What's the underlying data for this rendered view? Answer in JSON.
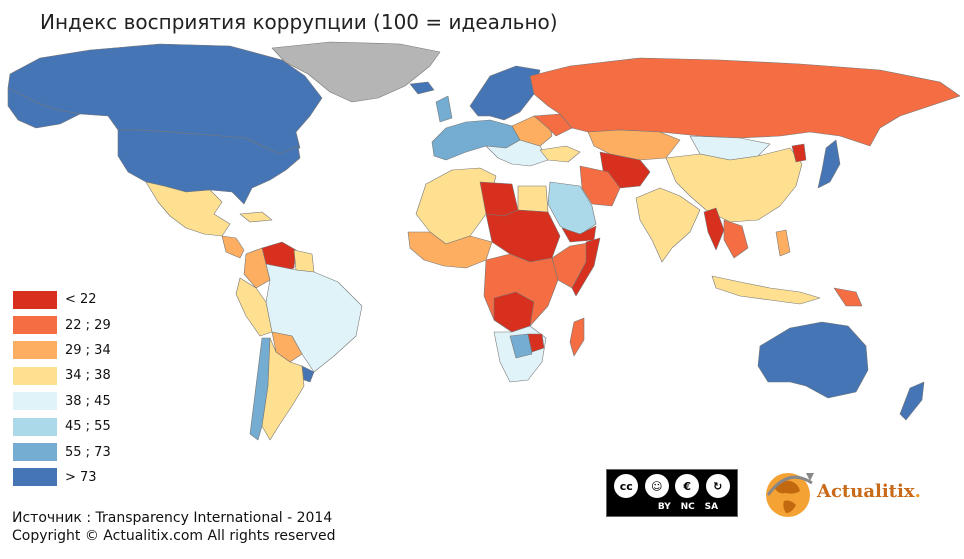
{
  "title": "Индекс восприятия коррупции (100 = идеально)",
  "legend": [
    {
      "label": "< 22",
      "color": "#d7301f"
    },
    {
      "label": "22 ; 29",
      "color": "#f46d43"
    },
    {
      "label": "29 ; 34",
      "color": "#fdae61"
    },
    {
      "label": "34 ; 38",
      "color": "#fee090"
    },
    {
      "label": "38 ; 45",
      "color": "#e0f3f8"
    },
    {
      "label": "45 ; 55",
      "color": "#abd9e9"
    },
    {
      "label": "55 ; 73",
      "color": "#74add1"
    },
    {
      "label": "> 73",
      "color": "#4575b4"
    }
  ],
  "colors": {
    "no_data": "#b5b5b5",
    "border": "#666666"
  },
  "footer": {
    "source": "Источник : Transparency International - 2014",
    "copyright": "Copyright © Actualitix.com All rights reserved"
  },
  "license": {
    "by": "BY",
    "nc": "NC",
    "sa": "SA"
  },
  "brand": {
    "name": "Actualitix",
    "dot": "."
  }
}
